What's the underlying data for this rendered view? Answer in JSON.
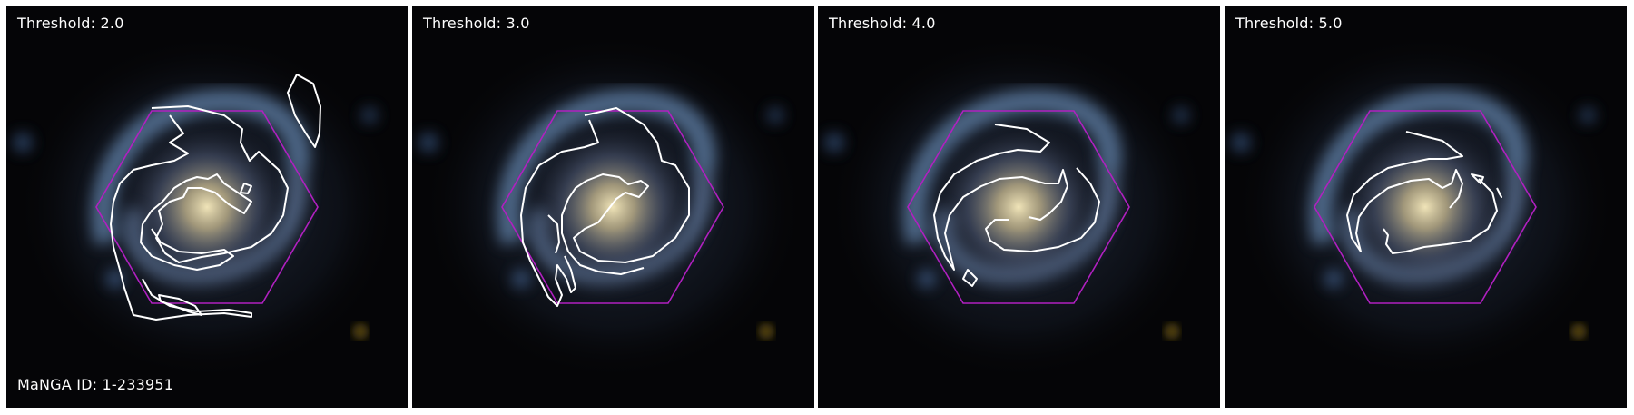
{
  "figure": {
    "panels": [
      {
        "threshold_label": "Threshold: 2.0"
      },
      {
        "threshold_label": "Threshold: 3.0"
      },
      {
        "threshold_label": "Threshold: 4.0"
      },
      {
        "threshold_label": "Threshold: 5.0"
      }
    ],
    "manga_id_label": "MaNGA ID: 1-233951",
    "colors": {
      "contour": "#ffffff",
      "hexagon": "#b020c0",
      "background": "#050507",
      "galaxy_core": "#d8c89a",
      "galaxy_arms": "#6a86a8"
    }
  }
}
